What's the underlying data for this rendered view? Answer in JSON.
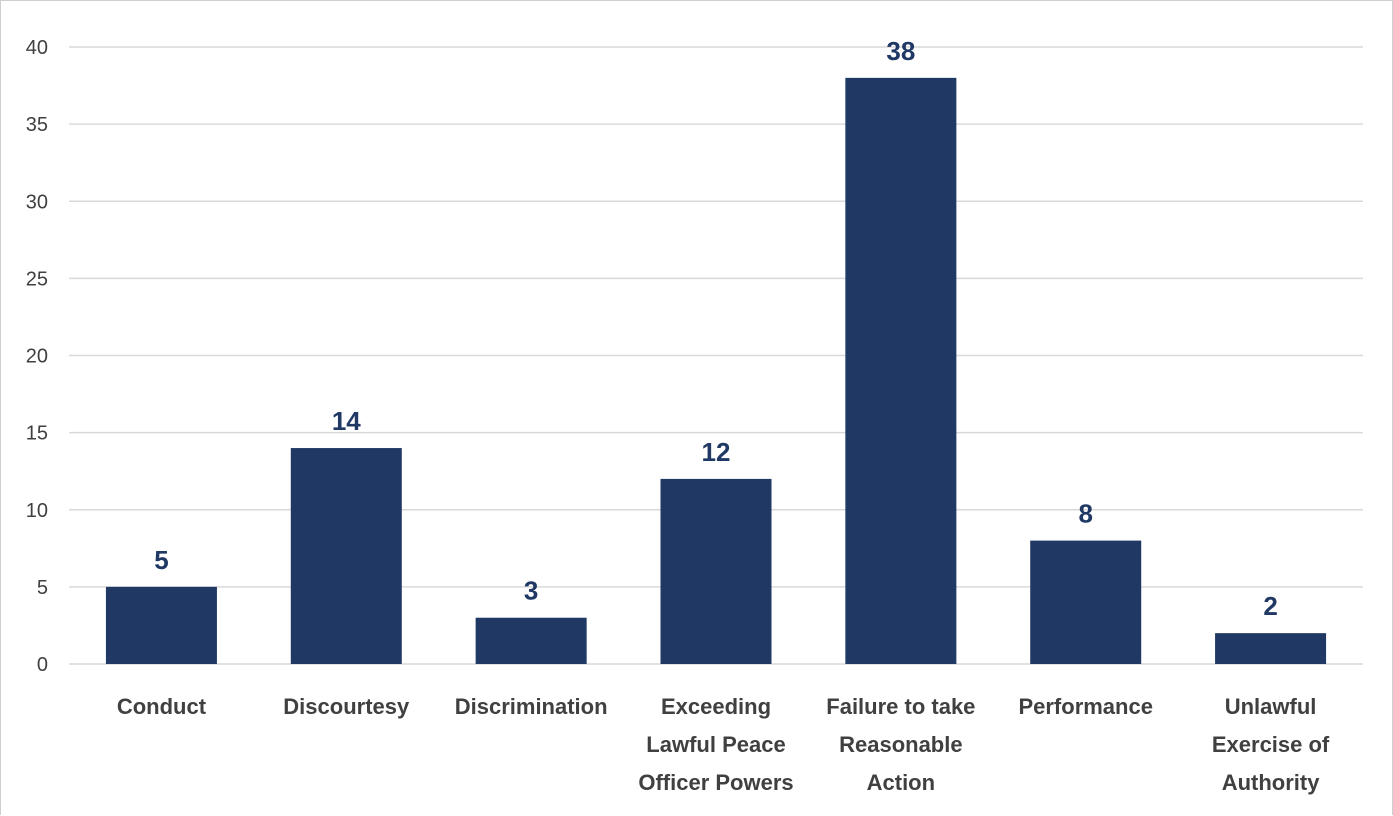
{
  "chart_data": {
    "type": "bar",
    "title": "",
    "xlabel": "",
    "ylabel": "",
    "categories": [
      [
        "Conduct"
      ],
      [
        "Discourtesy"
      ],
      [
        "Discrimination"
      ],
      [
        "Exceeding",
        "Lawful Peace",
        "Officer Powers"
      ],
      [
        "Failure to take",
        "Reasonable",
        "Action"
      ],
      [
        "Performance"
      ],
      [
        "Unlawful",
        "Exercise of",
        "Authority"
      ]
    ],
    "values": [
      5,
      14,
      3,
      12,
      38,
      8,
      2
    ],
    "value_labels": [
      "5",
      "14",
      "3",
      "12",
      "38",
      "8",
      "2"
    ],
    "ylim": [
      0,
      40
    ],
    "yticks": [
      0,
      5,
      10,
      15,
      20,
      25,
      30,
      35,
      40
    ],
    "grid": true,
    "legend": "none",
    "colors": {
      "bar": "#1f3864",
      "grid": "#d9d9d9",
      "data_label": "#1f3864",
      "axis_text": "#404040"
    }
  }
}
